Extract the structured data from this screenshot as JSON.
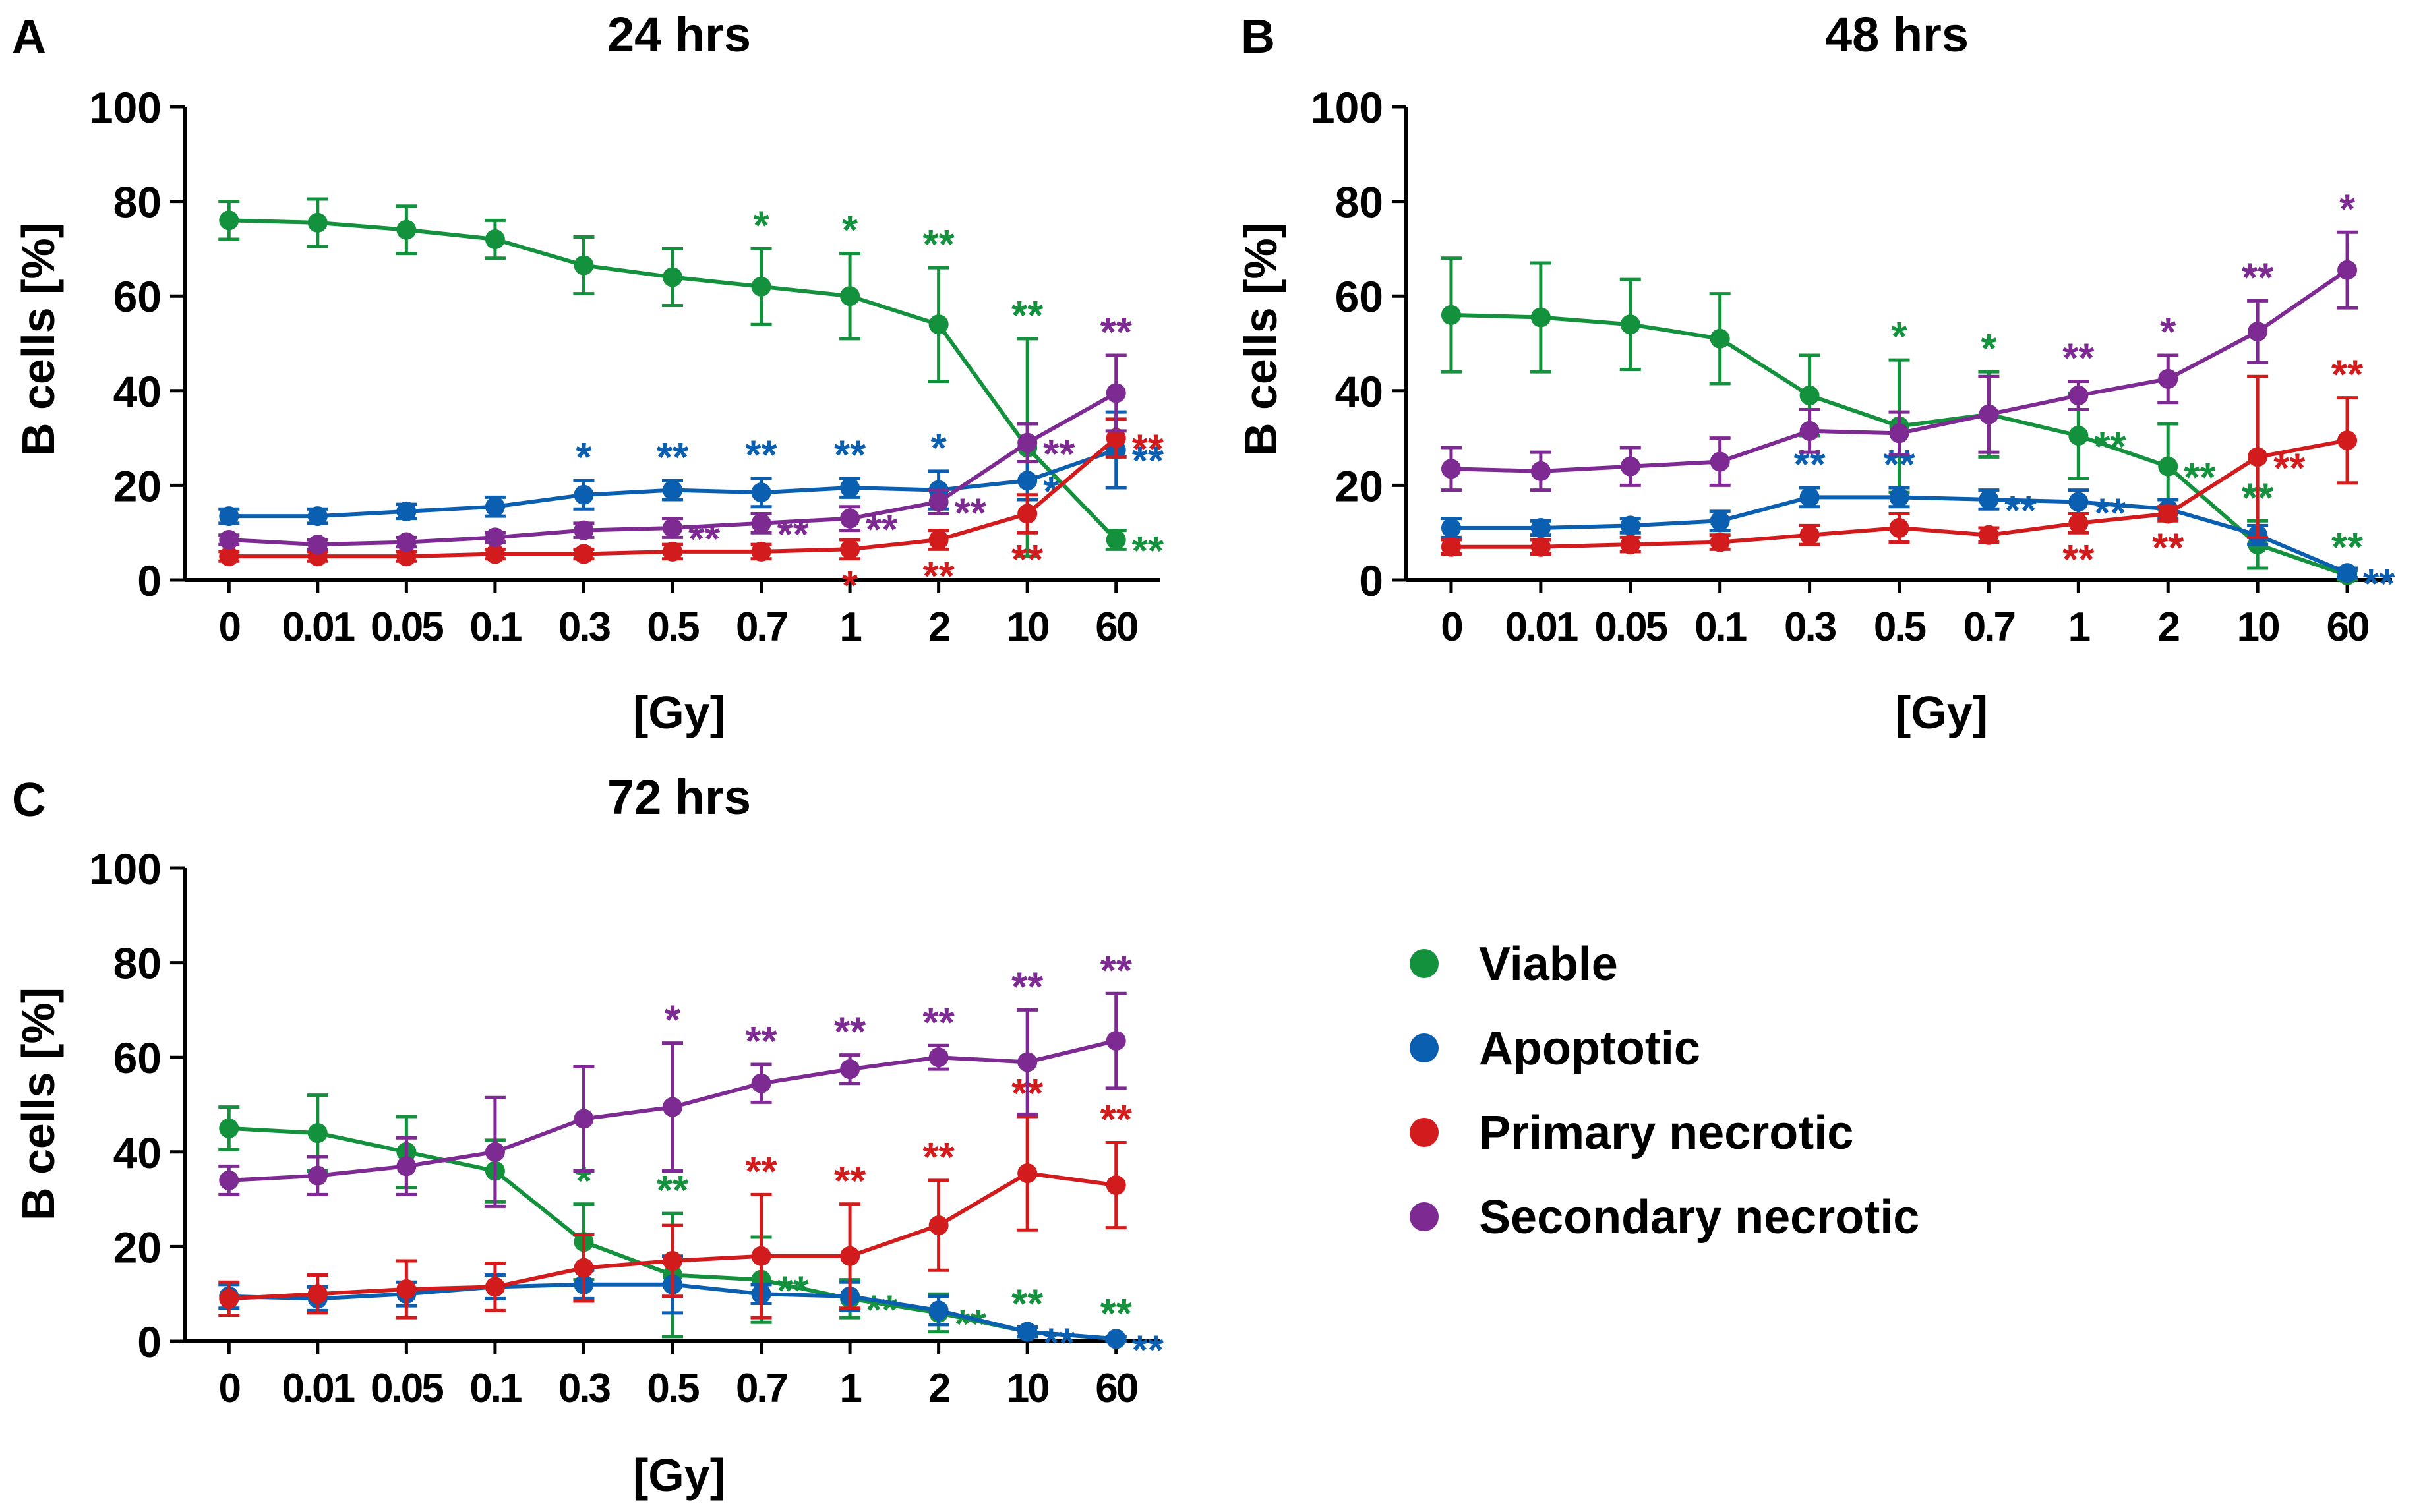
{
  "colors": {
    "viable": "#13913d",
    "apoptotic": "#0b5fb0",
    "primary": "#d21b1c",
    "secondary": "#7e2a93",
    "axis": "#000000"
  },
  "legend": {
    "items": [
      {
        "key": "viable",
        "label": "Viable"
      },
      {
        "key": "apoptotic",
        "label": "Apoptotic"
      },
      {
        "key": "primary",
        "label": "Primary necrotic"
      },
      {
        "key": "secondary",
        "label": "Secondary necrotic"
      }
    ]
  },
  "chart_data": [
    {
      "type": "line",
      "panel": "A",
      "title": "24 hrs",
      "xlabel": "[Gy]",
      "ylabel": "B cells [%]",
      "ylim": [
        0,
        100
      ],
      "yticks": [
        0,
        20,
        40,
        60,
        80,
        100
      ],
      "categories": [
        "0",
        "0.01",
        "0.05",
        "0.1",
        "0.3",
        "0.5",
        "0.7",
        "1",
        "2",
        "10",
        "60"
      ],
      "series": [
        {
          "name": "Viable",
          "key": "viable",
          "values": [
            76,
            75.5,
            74,
            72,
            66.5,
            64,
            62,
            60,
            54,
            28,
            8.5
          ],
          "errors": [
            4,
            5,
            5,
            4,
            6,
            6,
            8,
            9,
            12,
            23,
            2
          ],
          "stars": [
            null,
            null,
            null,
            null,
            null,
            null,
            {
              "text": "*",
              "pos": "above"
            },
            {
              "text": "*",
              "pos": "above"
            },
            {
              "text": "**",
              "pos": "above"
            },
            {
              "text": "**",
              "pos": "above"
            },
            {
              "text": "**",
              "pos": "right"
            }
          ]
        },
        {
          "name": "Apoptotic",
          "key": "apoptotic",
          "values": [
            13.5,
            13.5,
            14.5,
            15.5,
            18,
            19,
            18.5,
            19.5,
            19,
            21,
            27.5
          ],
          "errors": [
            1.5,
            1.5,
            1.5,
            2,
            3,
            2,
            3,
            2,
            4,
            4,
            8
          ],
          "stars": [
            null,
            null,
            null,
            null,
            {
              "text": "*",
              "pos": "above"
            },
            {
              "text": "**",
              "pos": "above"
            },
            {
              "text": "**",
              "pos": "above"
            },
            {
              "text": "**",
              "pos": "above"
            },
            {
              "text": "*",
              "pos": "above"
            },
            {
              "text": "*",
              "pos": "right"
            },
            {
              "text": "**",
              "pos": "right"
            }
          ]
        },
        {
          "name": "Primary necrotic",
          "key": "primary",
          "values": [
            5,
            5,
            5,
            5.5,
            5.5,
            6,
            6,
            6.5,
            8.5,
            14,
            30
          ],
          "errors": [
            1,
            1,
            1,
            1,
            1,
            1.5,
            1.5,
            2,
            2,
            4,
            4
          ],
          "stars": [
            null,
            null,
            null,
            null,
            null,
            null,
            null,
            {
              "text": "*",
              "pos": "below"
            },
            {
              "text": "**",
              "pos": "below"
            },
            {
              "text": "**",
              "pos": "below"
            },
            {
              "text": "**",
              "pos": "right"
            }
          ]
        },
        {
          "name": "Secondary necrotic",
          "key": "secondary",
          "values": [
            8.5,
            7.5,
            8,
            9,
            10.5,
            11,
            12,
            13,
            16.5,
            29,
            39.5
          ],
          "errors": [
            1,
            1,
            1,
            1,
            1.5,
            2,
            2,
            2.5,
            2.5,
            4,
            8
          ],
          "stars": [
            null,
            null,
            null,
            null,
            null,
            {
              "text": "**",
              "pos": "right"
            },
            {
              "text": "**",
              "pos": "right"
            },
            {
              "text": "**",
              "pos": "right"
            },
            {
              "text": "**",
              "pos": "right"
            },
            {
              "text": "**",
              "pos": "right"
            },
            {
              "text": "**",
              "pos": "above"
            }
          ]
        }
      ]
    },
    {
      "type": "line",
      "panel": "B",
      "title": "48 hrs",
      "xlabel": "[Gy]",
      "ylabel": "B cells [%]",
      "ylim": [
        0,
        100
      ],
      "yticks": [
        0,
        20,
        40,
        60,
        80,
        100
      ],
      "categories": [
        "0",
        "0.01",
        "0.05",
        "0.1",
        "0.3",
        "0.5",
        "0.7",
        "1",
        "2",
        "10",
        "60"
      ],
      "series": [
        {
          "name": "Viable",
          "key": "viable",
          "values": [
            56,
            55.5,
            54,
            51,
            39,
            32.5,
            35,
            30.5,
            24,
            7.5,
            1
          ],
          "errors": [
            12,
            11.5,
            9.5,
            9.5,
            8.5,
            14,
            9,
            9,
            9,
            5,
            1
          ],
          "stars": [
            null,
            null,
            null,
            null,
            null,
            {
              "text": "*",
              "pos": "above"
            },
            {
              "text": "*",
              "pos": "above"
            },
            {
              "text": "**",
              "pos": "right"
            },
            {
              "text": "**",
              "pos": "right"
            },
            {
              "text": "**",
              "pos": "above"
            },
            {
              "text": "**",
              "pos": "above"
            }
          ]
        },
        {
          "name": "Apoptotic",
          "key": "apoptotic",
          "values": [
            11,
            11,
            11.5,
            12.5,
            17.5,
            17.5,
            17,
            16.5,
            15,
            9.5,
            1.5
          ],
          "errors": [
            2,
            1.5,
            1.5,
            2,
            2,
            2,
            2,
            2.5,
            2,
            2,
            1
          ],
          "stars": [
            null,
            null,
            null,
            null,
            {
              "text": "**",
              "pos": "above"
            },
            {
              "text": "**",
              "pos": "above"
            },
            {
              "text": "**",
              "pos": "right"
            },
            {
              "text": "**",
              "pos": "right"
            },
            null,
            null,
            {
              "text": "**",
              "pos": "right"
            }
          ]
        },
        {
          "name": "Primary necrotic",
          "key": "primary",
          "values": [
            7,
            7,
            7.5,
            8,
            9.5,
            11,
            9.5,
            12,
            14,
            26,
            29.5
          ],
          "errors": [
            1.5,
            1.5,
            1.5,
            1.5,
            2,
            3,
            1.5,
            2,
            1.5,
            17,
            9
          ],
          "stars": [
            null,
            null,
            null,
            null,
            null,
            null,
            null,
            {
              "text": "**",
              "pos": "below"
            },
            {
              "text": "**",
              "pos": "below"
            },
            {
              "text": "**",
              "pos": "right"
            },
            {
              "text": "**",
              "pos": "above"
            }
          ]
        },
        {
          "name": "Secondary necrotic",
          "key": "secondary",
          "values": [
            23.5,
            23,
            24,
            25,
            31.5,
            31,
            35,
            39,
            42.5,
            52.5,
            65.5
          ],
          "errors": [
            4.5,
            4,
            4,
            5,
            4.5,
            4.5,
            8,
            3,
            5,
            6.5,
            8
          ],
          "stars": [
            null,
            null,
            null,
            null,
            null,
            null,
            null,
            {
              "text": "**",
              "pos": "above"
            },
            {
              "text": "*",
              "pos": "above"
            },
            {
              "text": "**",
              "pos": "above"
            },
            {
              "text": "*",
              "pos": "above"
            }
          ]
        }
      ]
    },
    {
      "type": "line",
      "panel": "C",
      "title": "72 hrs",
      "xlabel": "[Gy]",
      "ylabel": "B cells [%]",
      "ylim": [
        0,
        100
      ],
      "yticks": [
        0,
        20,
        40,
        60,
        80,
        100
      ],
      "categories": [
        "0",
        "0.01",
        "0.05",
        "0.1",
        "0.3",
        "0.5",
        "0.7",
        "1",
        "2",
        "10",
        "60"
      ],
      "series": [
        {
          "name": "Viable",
          "key": "viable",
          "values": [
            45,
            44,
            40,
            36,
            21,
            14,
            13,
            9,
            6,
            2,
            0.5
          ],
          "errors": [
            4.5,
            8,
            7.5,
            6.5,
            8,
            13,
            9,
            4,
            4,
            1,
            0.5
          ],
          "stars": [
            null,
            null,
            null,
            null,
            {
              "text": "*",
              "pos": "above"
            },
            {
              "text": "**",
              "pos": "above"
            },
            {
              "text": "**",
              "pos": "right"
            },
            {
              "text": "**",
              "pos": "right"
            },
            {
              "text": "**",
              "pos": "right"
            },
            {
              "text": "**",
              "pos": "above"
            },
            {
              "text": "**",
              "pos": "above"
            }
          ]
        },
        {
          "name": "Apoptotic",
          "key": "apoptotic",
          "values": [
            9.5,
            9,
            10,
            11.5,
            12,
            12,
            10,
            9.5,
            6.5,
            2,
            0.5
          ],
          "errors": [
            2.5,
            2.5,
            2.5,
            2.5,
            3,
            6,
            2,
            3,
            3,
            1,
            0.5
          ],
          "stars": [
            null,
            null,
            null,
            null,
            null,
            null,
            null,
            null,
            null,
            {
              "text": "**",
              "pos": "right"
            },
            {
              "text": "**",
              "pos": "right"
            }
          ]
        },
        {
          "name": "Primary necrotic",
          "key": "primary",
          "values": [
            9,
            10,
            11,
            11.5,
            15.5,
            17,
            18,
            18,
            24.5,
            35.5,
            33
          ],
          "errors": [
            3.5,
            4,
            6,
            5,
            7,
            7.5,
            13,
            11,
            9.5,
            12,
            9
          ],
          "stars": [
            null,
            null,
            null,
            null,
            null,
            null,
            {
              "text": "**",
              "pos": "above"
            },
            {
              "text": "**",
              "pos": "above"
            },
            {
              "text": "**",
              "pos": "above"
            },
            {
              "text": "**",
              "pos": "above"
            },
            {
              "text": "**",
              "pos": "above"
            }
          ]
        },
        {
          "name": "Secondary necrotic",
          "key": "secondary",
          "values": [
            34,
            35,
            37,
            40,
            47,
            49.5,
            54.5,
            57.5,
            60,
            59,
            63.5
          ],
          "errors": [
            3,
            4,
            6,
            11.5,
            11,
            13.5,
            4,
            3,
            2.5,
            11,
            10
          ],
          "stars": [
            null,
            null,
            null,
            null,
            null,
            {
              "text": "*",
              "pos": "above"
            },
            {
              "text": "**",
              "pos": "above"
            },
            {
              "text": "**",
              "pos": "above"
            },
            {
              "text": "**",
              "pos": "above"
            },
            {
              "text": "**",
              "pos": "above"
            },
            {
              "text": "**",
              "pos": "above"
            }
          ]
        }
      ]
    }
  ]
}
